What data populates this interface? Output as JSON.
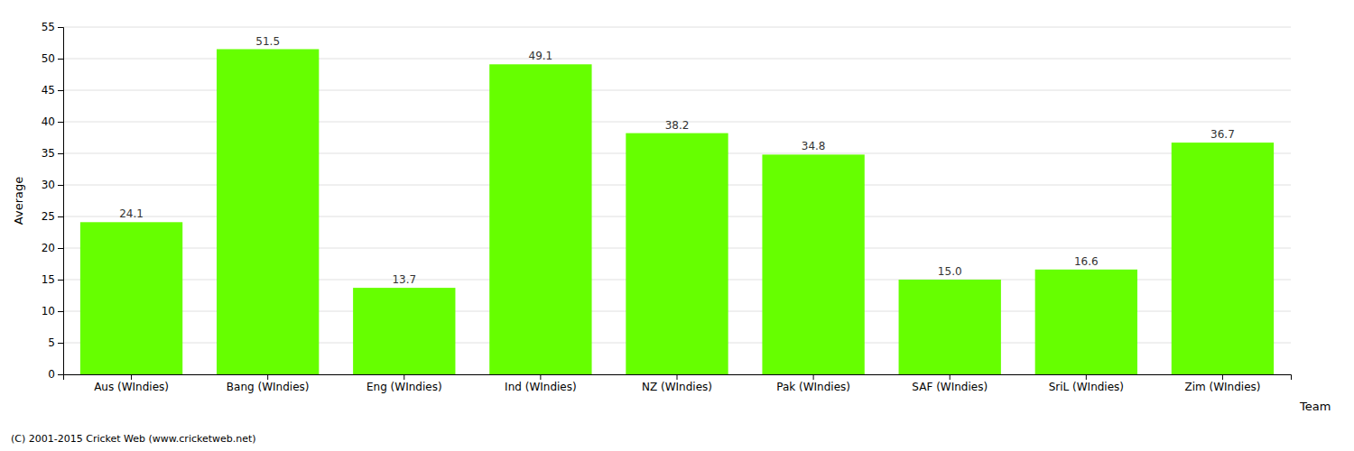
{
  "chart_data": {
    "type": "bar",
    "categories": [
      "Aus (WIndies)",
      "Bang (WIndies)",
      "Eng (WIndies)",
      "Ind (WIndies)",
      "NZ (WIndies)",
      "Pak (WIndies)",
      "SAF (WIndies)",
      "SriL (WIndies)",
      "Zim (WIndies)"
    ],
    "values": [
      24.1,
      51.5,
      13.7,
      49.1,
      38.2,
      34.8,
      15.0,
      16.6,
      36.7
    ],
    "value_labels": [
      "24.1",
      "51.5",
      "13.7",
      "49.1",
      "38.2",
      "34.8",
      "15.0",
      "16.6",
      "36.7"
    ],
    "data_labels": true,
    "color": "#66ff00",
    "ylabel": "Average",
    "xlabel": "Team",
    "ylim": [
      0,
      55
    ],
    "yticks": [
      0,
      5,
      10,
      15,
      20,
      25,
      30,
      35,
      40,
      45,
      50,
      55
    ],
    "grid": true,
    "annotations": [
      "(C) 2001-2015 Cricket Web (www.cricketweb.net)"
    ]
  }
}
